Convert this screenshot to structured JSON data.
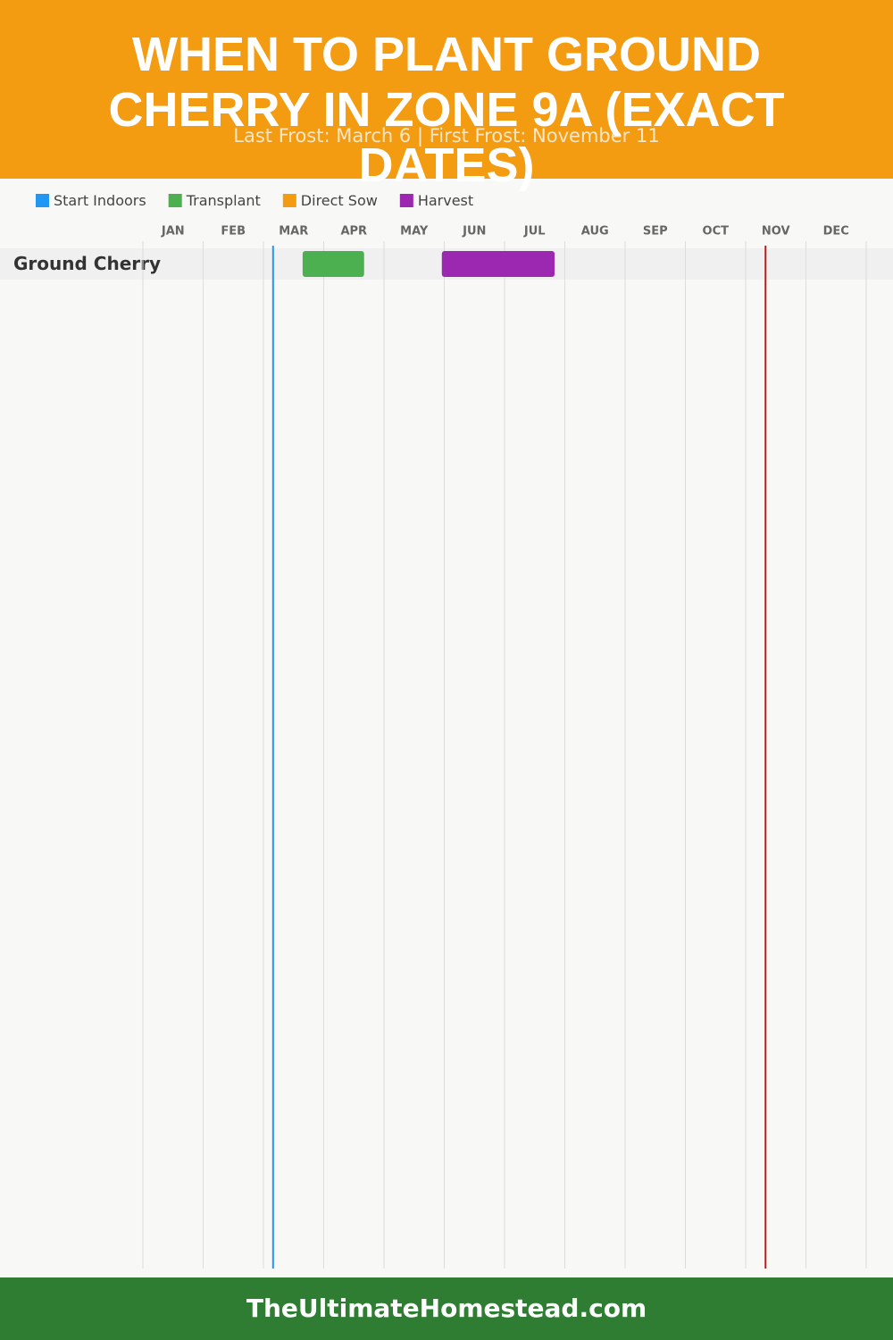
{
  "chart_data": {
    "type": "gantt",
    "title": "WHEN TO PLANT GROUND CHERRY IN ZONE 9A (EXACT DATES)",
    "subtitle": "Last Frost: March 6 | First Frost: November 11",
    "months": [
      "JAN",
      "FEB",
      "MAR",
      "APR",
      "MAY",
      "JUN",
      "JUL",
      "AUG",
      "SEP",
      "OCT",
      "NOV",
      "DEC"
    ],
    "xlim": [
      0,
      12
    ],
    "categories": [
      "Ground Cherry"
    ],
    "series": [
      {
        "name": "Start Indoors",
        "color": "#2196f3",
        "start": [
          null
        ],
        "end": [
          null
        ]
      },
      {
        "name": "Transplant",
        "color": "#4caf50",
        "start": [
          2.65
        ],
        "end": [
          3.67
        ]
      },
      {
        "name": "Direct Sow",
        "color": "#f39c12",
        "start": [
          null
        ],
        "end": [
          null
        ]
      },
      {
        "name": "Harvest",
        "color": "#9c27b0",
        "start": [
          4.96
        ],
        "end": [
          6.83
        ]
      }
    ],
    "frost_lines": [
      {
        "value": 2.16,
        "color": "#2196f3"
      },
      {
        "value": 10.33,
        "color": "#b71c1c"
      }
    ],
    "footer": "TheUltimateHomestead.com"
  }
}
